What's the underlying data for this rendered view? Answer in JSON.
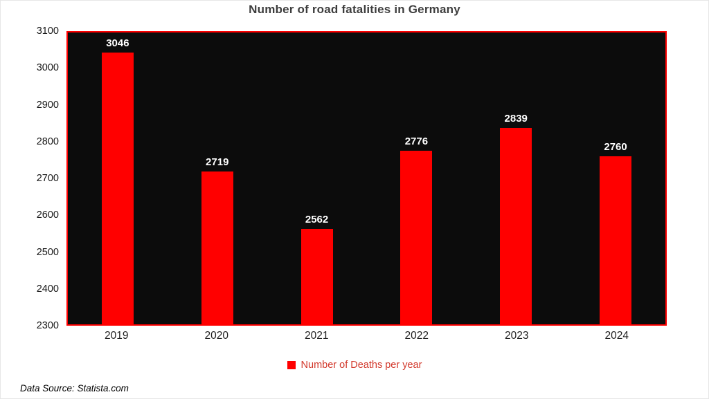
{
  "chart_data": {
    "type": "bar",
    "title": "Number of road fatalities in Germany",
    "categories": [
      "2019",
      "2020",
      "2021",
      "2022",
      "2023",
      "2024"
    ],
    "values": [
      3046,
      2719,
      2562,
      2776,
      2839,
      2760
    ],
    "ylim": [
      2300,
      3100
    ],
    "yticks": [
      3100,
      3000,
      2900,
      2800,
      2700,
      2600,
      2500,
      2400,
      2300
    ],
    "xlabel": "",
    "ylabel": "",
    "grid": false,
    "legend_position": "bottom",
    "legend_label": "Number of Deaths per year",
    "bar_color": "#ff0000",
    "plot_background": "#0c0c0c",
    "plot_border_color": "#ff0000",
    "value_label_color": "#ffffff"
  },
  "source_note": "Data Source: Statista.com"
}
